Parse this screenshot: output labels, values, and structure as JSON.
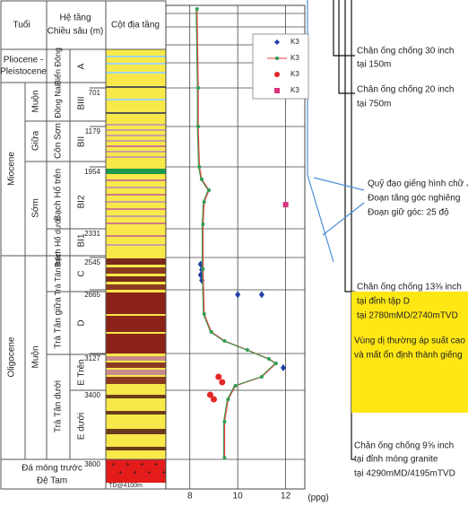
{
  "header": {
    "age": "Tuổi",
    "formation": "Hệ tầng",
    "depth": "Chiều sâu (m)",
    "column": "Cột địa tầng"
  },
  "pliocene": [
    "Pliocene -",
    "Pleistocene"
  ],
  "epochs": [
    "Miocene",
    "Oligocene"
  ],
  "sub_ages": [
    "Muộn",
    "Giữa",
    "Sớm",
    "Muộn"
  ],
  "formations": [
    "Biển Đông",
    "Đồng Nai",
    "Côn Sơn",
    "Bạch Hổ trên",
    "Bạch Hổ dưới",
    "Trà Tân trên",
    "Trà Tân giữa",
    "Trà Tân dưới"
  ],
  "units": [
    "A",
    "BIII",
    "BII",
    "BI2",
    "BI1",
    "C",
    "D",
    "E Trên",
    "E dưới"
  ],
  "basement": [
    "Đá móng trước",
    "Đệ Tam"
  ],
  "td": "TD@4100m",
  "annotations": {
    "casing_30": [
      "Chân ống chống 30 inch",
      "tại 150m"
    ],
    "casing_20": [
      "Chân ống chống 20 inch",
      "tại 750m"
    ],
    "trajectory": [
      "Quỹ đạo giếng hình chữ J",
      "Đoạn tăng góc nghiêng",
      "Đoạn giữ góc: 25 độ"
    ],
    "casing_13": [
      "Chân ống chống 13⅜ inch",
      "tại đỉnh tập D",
      "tại 2780mMD/2740mTVD"
    ],
    "zone": [
      "Vùng dị thường áp suất cao",
      "và mất ổn định thành giếng"
    ],
    "casing_9": [
      "Chân ống chống 9⅝ inch",
      "tại đỉnh móng granite",
      "tại 4290mMD/4195mTVD"
    ]
  },
  "chart_data": {
    "type": "line",
    "xlabel": "(ppg)",
    "xlim": [
      7,
      12.8
    ],
    "xticks": [
      8,
      10,
      12
    ],
    "ylim": [
      0,
      4100
    ],
    "yticks": [
      701,
      1179,
      1954,
      2331,
      2545,
      2665,
      3127,
      3400,
      3800
    ],
    "series": [
      {
        "name": "K3",
        "color": "#1f3fa8",
        "marker": "diamond",
        "depth": [
          2570,
          2590,
          2610,
          2630,
          2700,
          2700,
          3233
        ],
        "values": [
          8.45,
          8.5,
          8.45,
          8.5,
          10.0,
          11.0,
          11.9
        ]
      },
      {
        "name": "K3",
        "color": "#2e9e4f",
        "line_color": "#e83a3a",
        "marker": "line",
        "depth": [
          0,
          701,
          1179,
          1954,
          2030,
          2096,
          2167,
          2304,
          2588,
          2841,
          2971,
          3036,
          3101,
          3167,
          3200,
          3300,
          3367,
          3452,
          3582,
          3790
        ],
        "values": [
          8.3,
          8.35,
          8.35,
          8.4,
          8.5,
          8.8,
          8.6,
          8.55,
          8.55,
          8.6,
          8.9,
          9.45,
          10.4,
          11.3,
          11.6,
          11.0,
          9.9,
          9.6,
          9.45,
          9.45
        ]
      },
      {
        "name": "K3",
        "color": "#e32626",
        "marker": "circle",
        "depth": [
          3300,
          3340,
          3426,
          3452
        ],
        "values": [
          9.2,
          9.35,
          8.85,
          9.0
        ]
      },
      {
        "name": "K3",
        "color": "#d6337a",
        "marker": "square",
        "depth": [
          2184
        ],
        "values": [
          12.0
        ]
      }
    ]
  }
}
